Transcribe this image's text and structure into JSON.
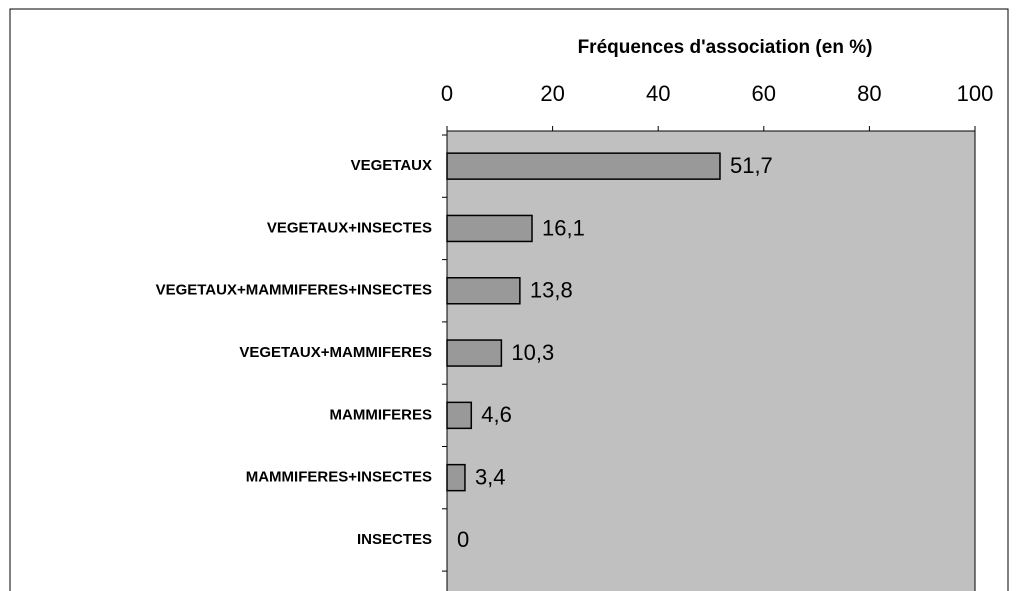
{
  "chart_data": {
    "type": "bar",
    "orientation": "horizontal",
    "title": "Fréquences d'association (en %)",
    "categories": [
      "VEGETAUX",
      "VEGETAUX+INSECTES",
      "VEGETAUX+MAMMIFERES+INSECTES",
      "VEGETAUX+MAMMIFERES",
      "MAMMIFERES",
      "MAMMIFERES+INSECTES",
      "INSECTES"
    ],
    "values": [
      51.7,
      16.1,
      13.8,
      10.3,
      4.6,
      3.4,
      0
    ],
    "value_labels": [
      "51,7",
      "16,1",
      "13,8",
      "10,3",
      "4,6",
      "3,4",
      "0"
    ],
    "color": "#999999",
    "background": "#c0c0c0",
    "xlim": [
      0,
      100
    ],
    "xticks": [
      0,
      20,
      40,
      60,
      80,
      100
    ]
  }
}
